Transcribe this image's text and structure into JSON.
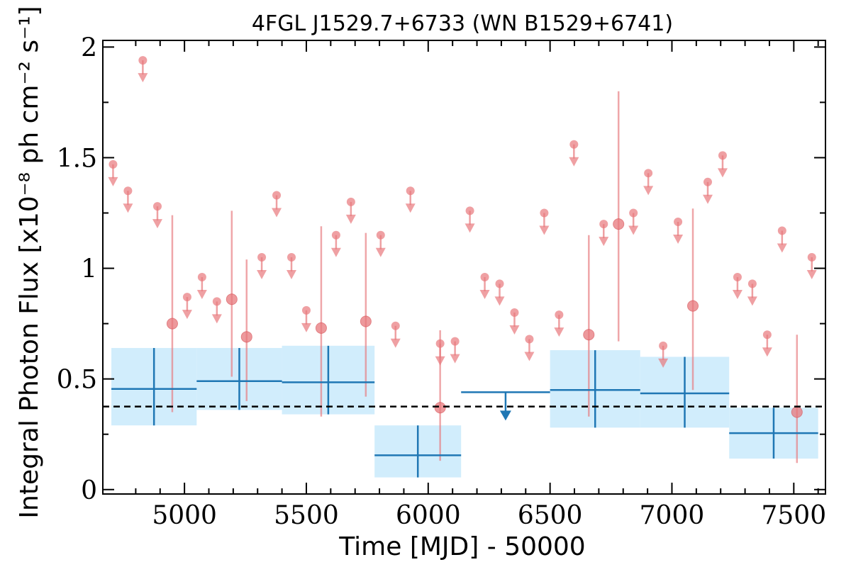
{
  "chart_data": {
    "type": "scatter",
    "title": "4FGL J1529.7+6733 (WN B1529+6741)",
    "xlabel": "Time [MJD] - 50000",
    "ylabel": "Integral Photon Flux [x10⁻⁸ ph cm⁻² s⁻¹]",
    "xlim": [
      4665,
      7630
    ],
    "ylim": [
      -0.02,
      2.03
    ],
    "x_ticks": [
      5000,
      5500,
      6000,
      6500,
      7000,
      7500
    ],
    "y_ticks": [
      0,
      0.5,
      1,
      1.5,
      2
    ],
    "y_tick_labels": [
      "0",
      "0.5",
      "1",
      "1.5",
      "2"
    ],
    "mean_flux": 0.375,
    "colors": {
      "monthly": "#e8787c",
      "yearly": "#1f77b4",
      "yearly_band": "#d1edfc",
      "mean_line": "#000000"
    },
    "series": [
      {
        "name": "",
        "kind": "upper_limits",
        "x": [
          4707,
          4768,
          4829,
          4889,
          5011,
          5072,
          5133,
          5317,
          5378,
          5439,
          5500,
          5622,
          5683,
          5805,
          5866,
          5927,
          6049,
          6110,
          6171,
          6232,
          6293,
          6354,
          6415,
          6476,
          6537,
          6598,
          6720,
          6842,
          6903,
          6964,
          7025,
          7147,
          7208,
          7269,
          7330,
          7391,
          7452,
          7574
        ],
        "y": [
          1.47,
          1.35,
          1.94,
          1.28,
          0.87,
          0.96,
          0.85,
          1.05,
          1.33,
          1.05,
          0.81,
          1.15,
          1.3,
          1.15,
          0.74,
          1.35,
          0.66,
          0.67,
          1.26,
          0.96,
          0.93,
          0.8,
          0.68,
          1.25,
          0.79,
          1.56,
          1.2,
          1.25,
          1.43,
          0.65,
          1.21,
          1.39,
          1.51,
          0.96,
          0.93,
          0.7,
          1.17,
          1.05
        ]
      },
      {
        "name": "",
        "kind": "detections",
        "x": [
          4950,
          5194,
          5255,
          5561,
          5744,
          6049,
          6659,
          6781,
          7086,
          7513
        ],
        "y": [
          0.75,
          0.86,
          0.69,
          0.73,
          0.76,
          0.37,
          0.7,
          1.2,
          0.83,
          0.35
        ],
        "y_low": [
          0.35,
          0.51,
          0.4,
          0.33,
          0.42,
          0.13,
          0.33,
          0.67,
          0.45,
          0.12
        ],
        "y_high": [
          1.24,
          1.26,
          1.04,
          1.19,
          1.16,
          0.72,
          1.15,
          1.8,
          1.27,
          0.7
        ]
      },
      {
        "name": "",
        "kind": "yearly_bins",
        "x_start": [
          4700,
          5050,
          5400,
          5780,
          6135,
          6500,
          6870,
          7235
        ],
        "x_end": [
          5050,
          5400,
          5780,
          6135,
          6500,
          6870,
          7235,
          7600
        ],
        "y": [
          0.455,
          0.49,
          0.485,
          0.155,
          0.44,
          0.45,
          0.435,
          0.255
        ],
        "y_low": [
          0.29,
          0.36,
          0.34,
          0.055,
          null,
          0.28,
          0.28,
          0.14
        ],
        "y_high": [
          0.64,
          0.64,
          0.65,
          0.29,
          null,
          0.63,
          0.6,
          0.37
        ],
        "is_upper_limit": [
          false,
          false,
          false,
          false,
          true,
          false,
          false,
          false
        ]
      }
    ]
  }
}
